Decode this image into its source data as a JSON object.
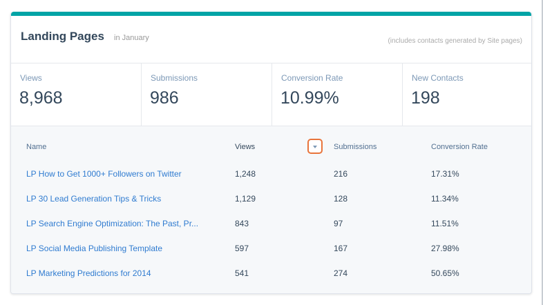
{
  "card": {
    "title": "Landing Pages",
    "subtitle": "in January",
    "note": "(includes contacts generated by Site pages)"
  },
  "stats": [
    {
      "label": "Views",
      "value": "8,968"
    },
    {
      "label": "Submissions",
      "value": "986"
    },
    {
      "label": "Conversion Rate",
      "value": "10.99%"
    },
    {
      "label": "New Contacts",
      "value": "198"
    }
  ],
  "table": {
    "columns": {
      "name": "Name",
      "views": "Views",
      "submissions": "Submissions",
      "conversion": "Conversion Rate"
    },
    "rows": [
      {
        "name": "LP How to Get 1000+ Followers on Twitter",
        "views": "1,248",
        "submissions": "216",
        "conversion": "17.31%"
      },
      {
        "name": "LP 30 Lead Generation Tips & Tricks",
        "views": "1,129",
        "submissions": "128",
        "conversion": "11.34%"
      },
      {
        "name": "LP Search Engine Optimization: The Past, Pr...",
        "views": "843",
        "submissions": "97",
        "conversion": "11.51%"
      },
      {
        "name": "LP Social Media Publishing Template",
        "views": "597",
        "submissions": "167",
        "conversion": "27.98%"
      },
      {
        "name": "LP Marketing Predictions for 2014",
        "views": "541",
        "submissions": "274",
        "conversion": "50.65%"
      }
    ]
  },
  "colors": {
    "accent": "#00a4a6",
    "link": "#2f7bd0",
    "highlight": "#e8743b"
  },
  "icons": {
    "sort": "chevron-down-icon"
  }
}
